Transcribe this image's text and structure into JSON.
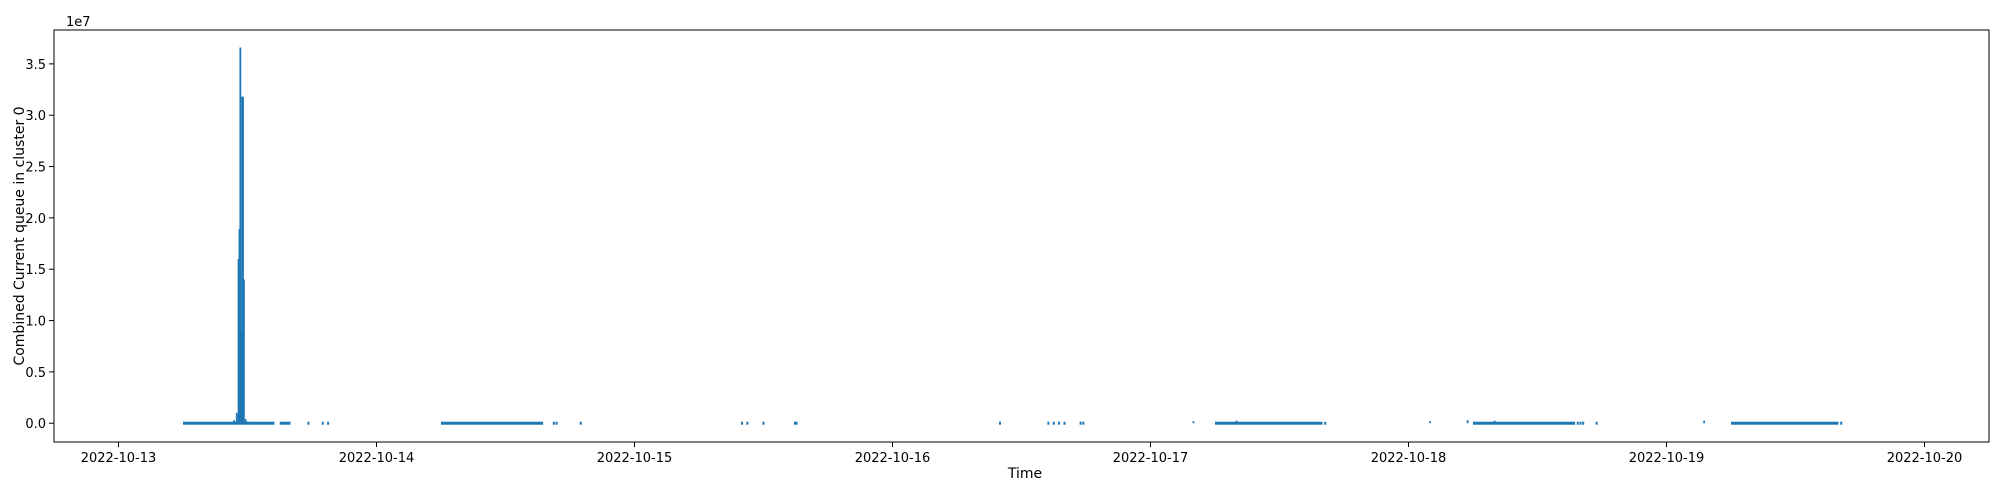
{
  "chart_data": {
    "type": "line",
    "title": "",
    "xlabel": "Time",
    "ylabel": "Combined Current queue in cluster 0",
    "y_offset_text": "1e7",
    "y_scale_factor": 10000000,
    "grid": false,
    "legend": "none",
    "color": "#1f77b4",
    "xlim": [
      "2022-10-12T18:00",
      "2022-10-20T06:00"
    ],
    "ylim": [
      -1830000,
      38300000
    ],
    "x_ticks": [
      "2022-10-13",
      "2022-10-14",
      "2022-10-15",
      "2022-10-16",
      "2022-10-17",
      "2022-10-18",
      "2022-10-19",
      "2022-10-20"
    ],
    "y_ticks": [
      0.0,
      5000000,
      10000000,
      15000000,
      20000000,
      25000000,
      30000000,
      35000000
    ],
    "y_tick_labels": [
      "0.0",
      "0.5",
      "1.0",
      "1.5",
      "2.0",
      "2.5",
      "3.0",
      "3.5"
    ],
    "baseline_segments": [
      [
        "2022-10-13T06:00",
        "2022-10-13T14:30"
      ],
      [
        "2022-10-13T15:00",
        "2022-10-13T16:00"
      ],
      [
        "2022-10-14T06:00",
        "2022-10-14T15:30"
      ],
      [
        "2022-10-15T14:50",
        "2022-10-15T15:10"
      ],
      [
        "2022-10-17T06:00",
        "2022-10-17T16:00"
      ],
      [
        "2022-10-18T06:00",
        "2022-10-18T15:30"
      ],
      [
        "2022-10-19T06:00",
        "2022-10-19T16:00"
      ]
    ],
    "isolated_points": [
      "2022-10-13T17:40",
      "2022-10-13T19:00",
      "2022-10-13T19:30",
      "2022-10-14T16:30",
      "2022-10-14T16:45",
      "2022-10-14T19:00",
      "2022-10-15T10:00",
      "2022-10-15T10:30",
      "2022-10-15T12:00",
      "2022-10-16T10:00",
      "2022-10-16T14:30",
      "2022-10-16T15:00",
      "2022-10-16T15:30",
      "2022-10-16T16:00",
      "2022-10-16T17:30",
      "2022-10-16T17:45",
      "2022-10-17T16:15",
      "2022-10-18T15:45",
      "2022-10-18T16:00",
      "2022-10-18T16:15",
      "2022-10-18T17:30",
      "2022-10-19T16:15"
    ],
    "spikes": [
      {
        "t": "2022-10-13T10:45",
        "value": 300000
      },
      {
        "t": "2022-10-13T11:00",
        "value": 1000000
      },
      {
        "t": "2022-10-13T11:10",
        "value": 16000000
      },
      {
        "t": "2022-10-13T11:15",
        "value": 18900000
      },
      {
        "t": "2022-10-13T11:20",
        "value": 36600000
      },
      {
        "t": "2022-10-13T11:25",
        "value": 9000000
      },
      {
        "t": "2022-10-13T11:30",
        "value": 31800000
      },
      {
        "t": "2022-10-13T11:35",
        "value": 31800000
      },
      {
        "t": "2022-10-13T11:40",
        "value": 14000000
      },
      {
        "t": "2022-10-13T11:50",
        "value": 400000
      },
      {
        "t": "2022-10-13T12:00",
        "value": 150000
      },
      {
        "t": "2022-10-13T21:00",
        "value": 0
      },
      {
        "t": "2022-10-14T02:00",
        "value": 0
      },
      {
        "t": "2022-10-17T04:00",
        "value": 200000
      },
      {
        "t": "2022-10-17T08:00",
        "value": 250000
      },
      {
        "t": "2022-10-18T02:00",
        "value": 200000
      },
      {
        "t": "2022-10-18T05:30",
        "value": 300000
      },
      {
        "t": "2022-10-18T08:00",
        "value": 250000
      },
      {
        "t": "2022-10-19T03:30",
        "value": 250000
      }
    ]
  }
}
